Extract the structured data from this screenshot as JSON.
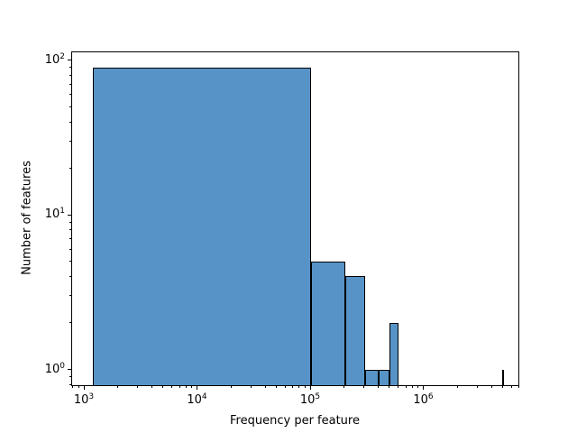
{
  "figure": {
    "background": "#ffffff"
  },
  "chart_data": {
    "type": "bar",
    "subtype": "histogram",
    "title": "",
    "xlabel": "Frequency per feature",
    "ylabel": "Number of features",
    "xscale": "log",
    "yscale": "log",
    "grid": false,
    "legend": null,
    "bar_color": "#5793c6",
    "bar_edge_color": "#000000",
    "n_bins": 50,
    "bin_range": [
      1200,
      5040000
    ],
    "nonzero_bins": [
      {
        "x0": 1200,
        "x1": 102000,
        "count": 90
      },
      {
        "x0": 102000,
        "x1": 202800,
        "count": 5
      },
      {
        "x0": 202800,
        "x1": 303600,
        "count": 4
      },
      {
        "x0": 303600,
        "x1": 404400,
        "count": 1
      },
      {
        "x0": 404400,
        "x1": 505200,
        "count": 1
      },
      {
        "x0": 505200,
        "x1": 606000,
        "count": 2
      },
      {
        "x0": 4939200,
        "x1": 5040000,
        "count": 1
      }
    ],
    "xlim": [
      773,
      7060000
    ],
    "ylim": [
      0.78,
      114
    ],
    "x_major_ticks": [
      1000,
      10000,
      100000,
      1000000
    ],
    "x_tick_labels": [
      {
        "base": "10",
        "exp": "3"
      },
      {
        "base": "10",
        "exp": "4"
      },
      {
        "base": "10",
        "exp": "5"
      },
      {
        "base": "10",
        "exp": "6"
      }
    ],
    "y_major_ticks": [
      1,
      10,
      100
    ],
    "y_tick_labels": [
      {
        "base": "10",
        "exp": "0"
      },
      {
        "base": "10",
        "exp": "1"
      },
      {
        "base": "10",
        "exp": "2"
      }
    ]
  }
}
